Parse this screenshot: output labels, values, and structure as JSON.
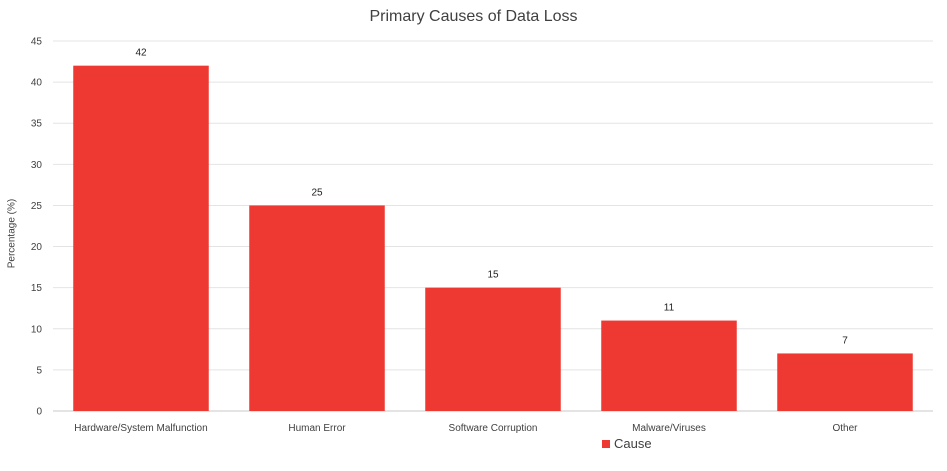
{
  "chart_data": {
    "type": "bar",
    "title": "Primary Causes of Data Loss",
    "xlabel": "",
    "ylabel": "Percentage (%)",
    "categories": [
      "Hardware/System Malfunction",
      "Human Error",
      "Software Corruption",
      "Malware/Viruses",
      "Other"
    ],
    "series": [
      {
        "name": "Cause",
        "values": [
          42,
          25,
          15,
          11,
          7
        ],
        "color": "#ee3832"
      }
    ],
    "ylim": [
      0,
      45
    ],
    "yticks": [
      0,
      5,
      10,
      15,
      20,
      25,
      30,
      35,
      40,
      45
    ],
    "grid": true,
    "data_labels": true,
    "legend_position": "bottom"
  }
}
